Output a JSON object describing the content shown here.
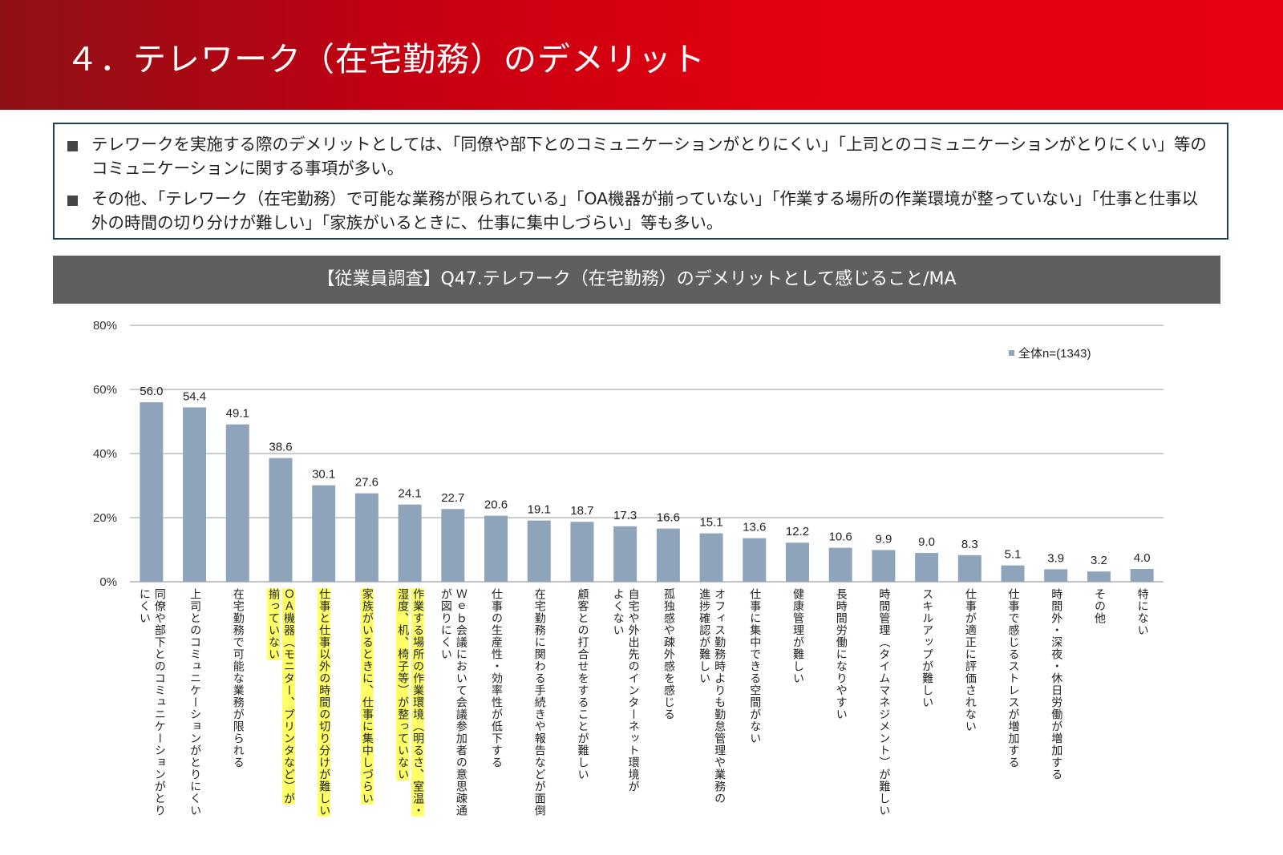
{
  "header": {
    "title": "４．テレワーク（在宅勤務）のデメリット"
  },
  "summary": {
    "bullets": [
      "テレワークを実施する際のデメリットとしては、「同僚や部下とのコミュニケーションがとりにくい」「上司とのコミュニケーションがとりにくい」等のコミュニケーションに関する事項が多い。",
      "その他、「テレワーク（在宅勤務）で可能な業務が限られている」「OA機器が揃っていない」「作業する場所の作業環境が整っていない」「仕事と仕事以外の時間の切り分けが難しい」「家族がいるときに、仕事に集中しづらい」等も多い。"
    ]
  },
  "chart_banner": {
    "title": "【従業員調査】Q47.テレワーク（在宅勤務）のデメリットとして感じること/MA"
  },
  "colors": {
    "bar": "#8ea4bb",
    "highlight": "#ffff66",
    "header_red": "#e60012",
    "summary_border": "#1f3f5b",
    "banner_gray": "#5f5f5f"
  },
  "chart_data": {
    "type": "bar",
    "ylim": [
      0,
      80
    ],
    "yticks": [
      "0%",
      "20%",
      "40%",
      "60%",
      "80%"
    ],
    "grid": true,
    "legend_position": "top-right",
    "series": [
      {
        "name": "全体n=(1343)",
        "values": [
          56.0,
          54.4,
          49.1,
          38.6,
          30.1,
          27.6,
          24.1,
          22.7,
          20.6,
          19.1,
          18.7,
          17.3,
          16.6,
          15.1,
          13.6,
          12.2,
          10.6,
          9.9,
          9.0,
          8.3,
          5.1,
          3.9,
          3.2,
          4.0
        ]
      }
    ],
    "value_labels": [
      "56.0",
      "54.4",
      "49.1",
      "38.6",
      "30.1",
      "27.6",
      "24.1",
      "22.7",
      "20.6",
      "19.1",
      "18.7",
      "17.3",
      "16.6",
      "15.1",
      "13.6",
      "12.2",
      "10.6",
      "9.9",
      "9.0",
      "8.3",
      "5.1",
      "3.9",
      "3.2",
      "4.0"
    ],
    "categories": [
      [
        "同僚や部下とのコミュニケーションがとり",
        "にくい"
      ],
      [
        "上司とのコミュニケーションがとりにくい"
      ],
      [
        "在宅勤務で可能な業務が限られる"
      ],
      [
        "ＯＡ機器（モニター、プリンタなど）が",
        "揃っていない"
      ],
      [
        "仕事と仕事以外の時間の切り分けが難しい"
      ],
      [
        "家族がいるときに、仕事に集中しづらい"
      ],
      [
        "作業する場所の作業環境（明るさ、室温・",
        "湿度、机、椅子等）が整っていない"
      ],
      [
        "Ｗｅｂ会議において会議参加者の意思疎通",
        "が図りにくい"
      ],
      [
        "仕事の生産性・効率性が低下する"
      ],
      [
        "在宅勤務に関わる手続きや報告などが面倒"
      ],
      [
        "顧客との打合せをすることが難しい"
      ],
      [
        "自宅や外出先のインターネット環境が",
        "よくない"
      ],
      [
        "孤独感や疎外感を感じる"
      ],
      [
        "オフィス勤務時よりも勤怠管理や業務の",
        "進捗確認が難しい"
      ],
      [
        "仕事に集中できる空間がない"
      ],
      [
        "健康管理が難しい"
      ],
      [
        "長時間労働になりやすい"
      ],
      [
        "時間管理（タイムマネジメント）が難しい"
      ],
      [
        "スキルアップが難しい"
      ],
      [
        "仕事が適正に評価されない"
      ],
      [
        "仕事で感じるストレスが増加する"
      ],
      [
        "時間外・深夜・休日労働が増加する"
      ],
      [
        "その他"
      ],
      [
        "特にない"
      ]
    ],
    "highlighted": [
      false,
      false,
      false,
      true,
      true,
      true,
      true,
      false,
      false,
      false,
      false,
      false,
      false,
      false,
      false,
      false,
      false,
      false,
      false,
      false,
      false,
      false,
      false,
      false
    ]
  }
}
